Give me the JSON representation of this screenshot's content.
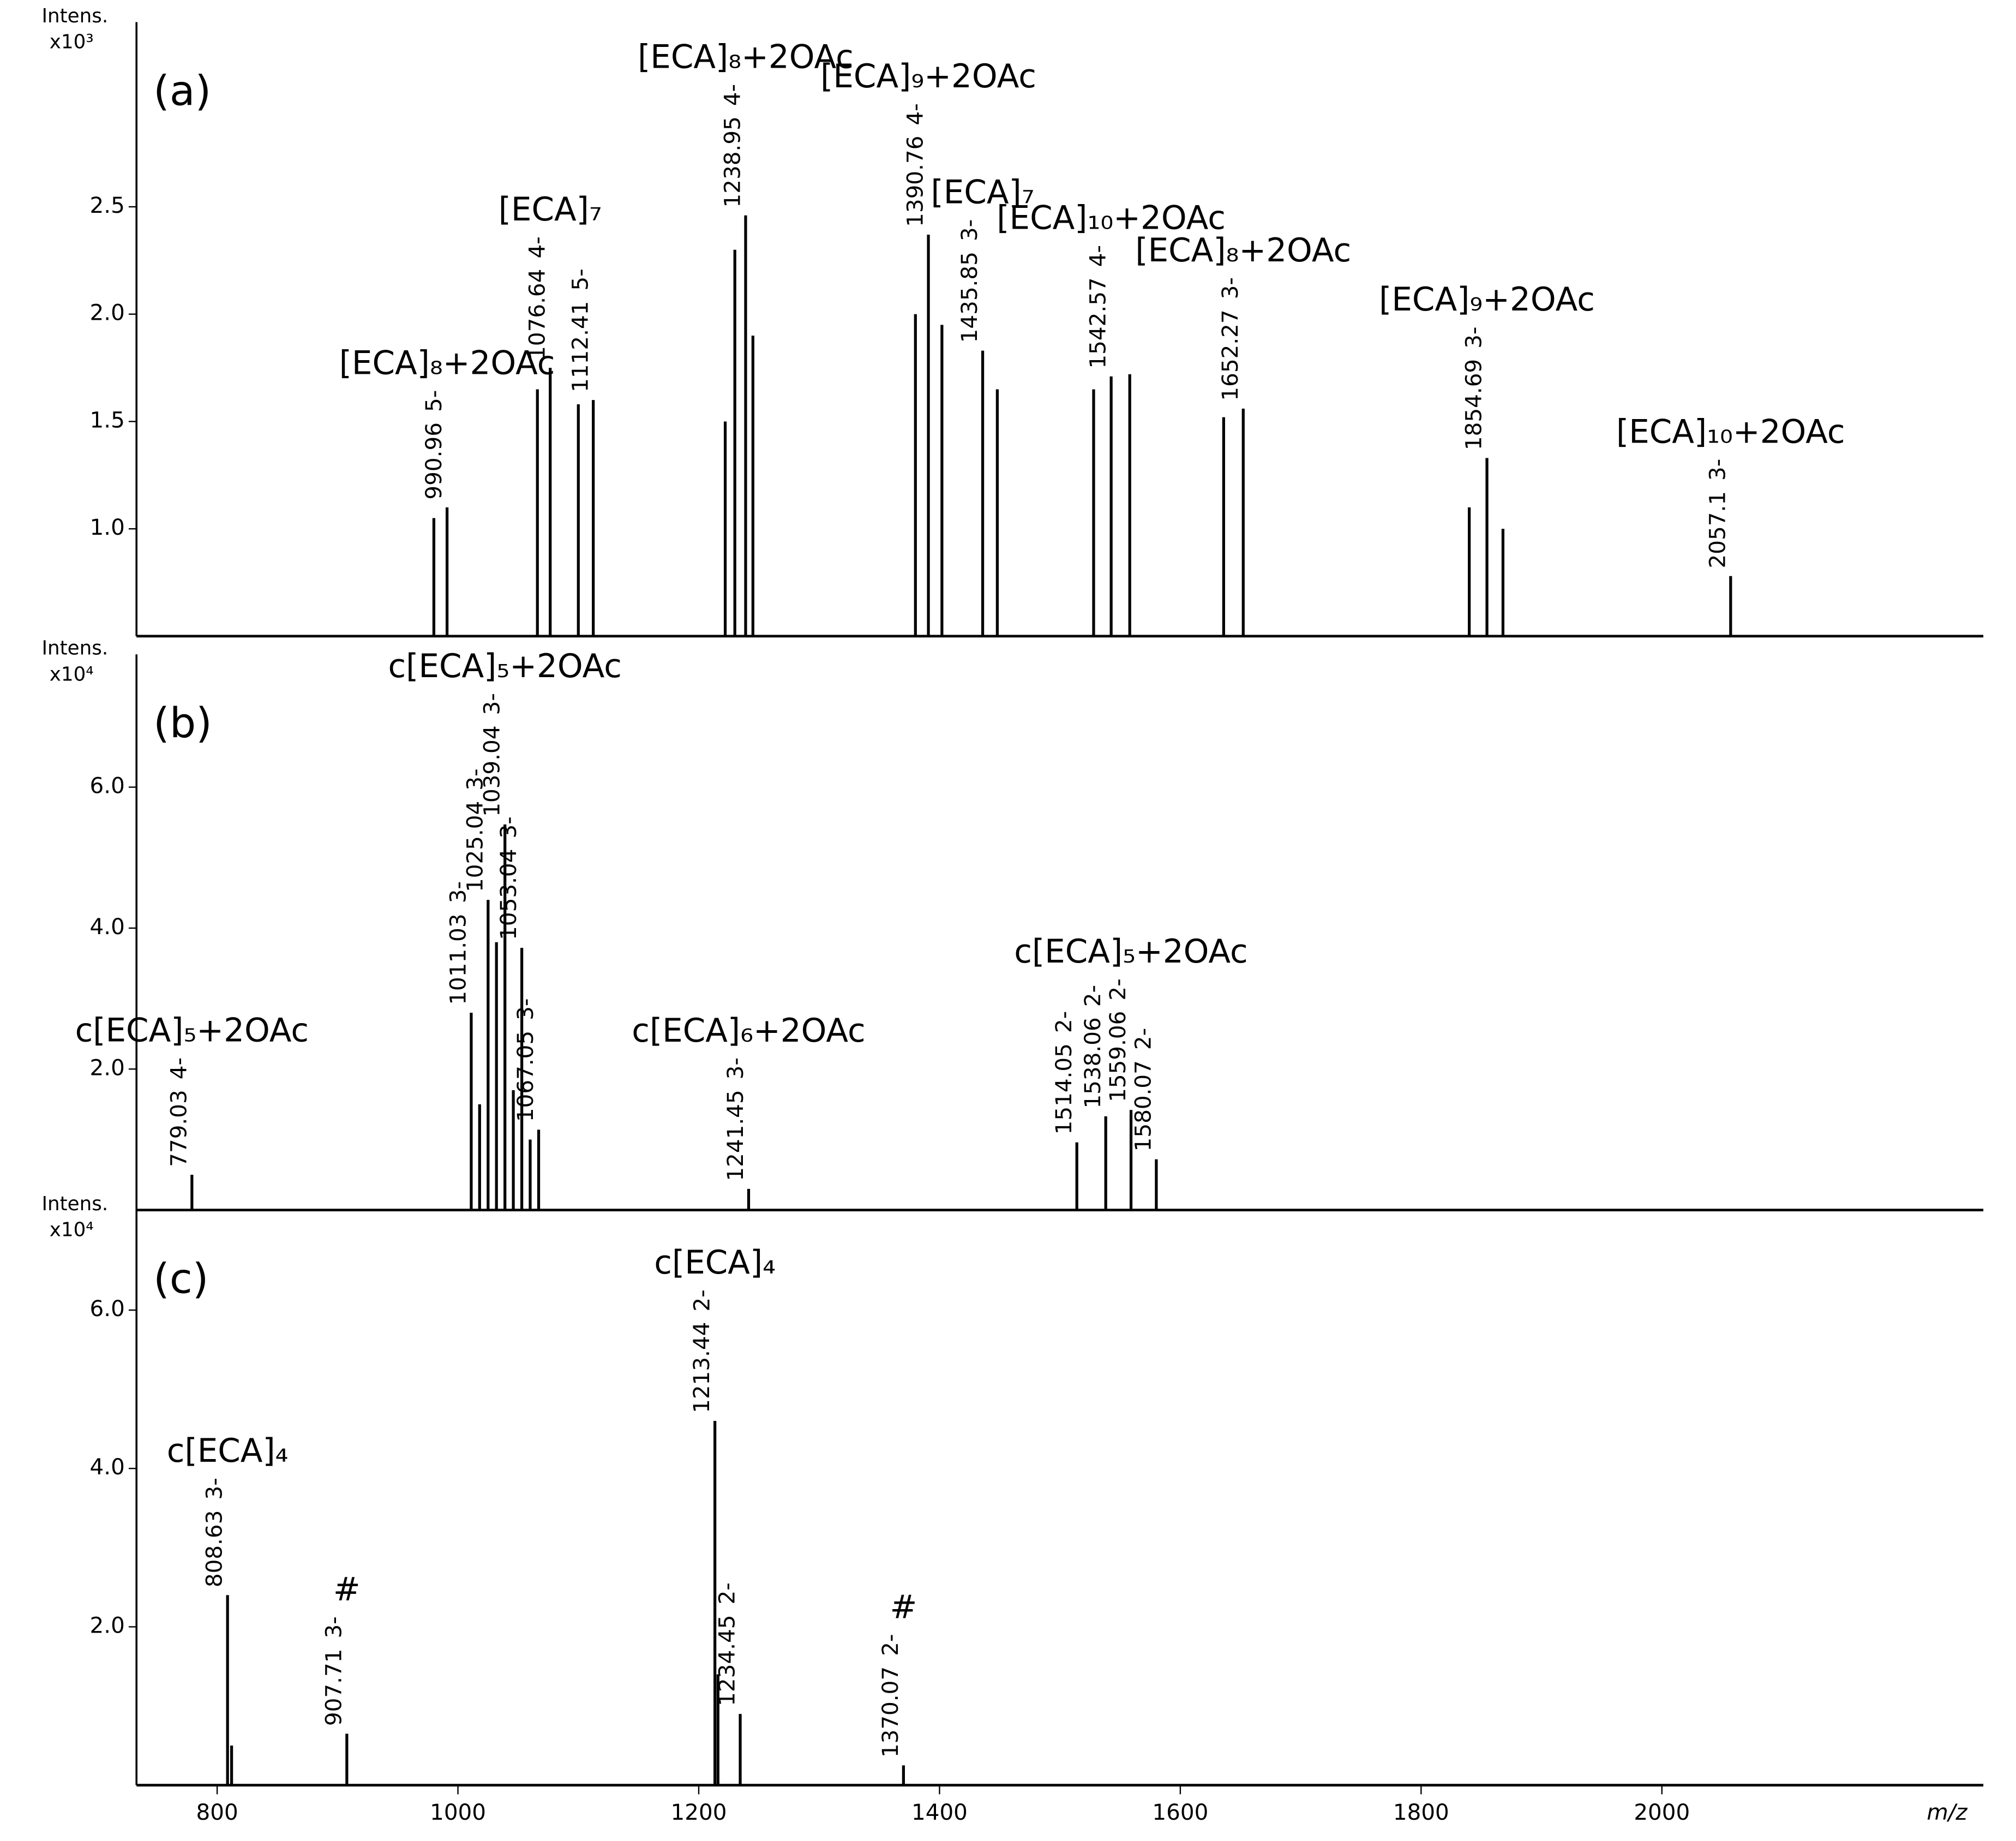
{
  "chart_data": [
    {
      "type": "stem",
      "panel_label": "(a)",
      "y_label": "Intens.",
      "y_multiplier": "x10³",
      "color": "#000000",
      "ylim": [
        0.5,
        3.3
      ],
      "yticks": [
        {
          "value": 1.0,
          "label": "1.0"
        },
        {
          "value": 1.5,
          "label": "1.5"
        },
        {
          "value": 2.0,
          "label": "2.0"
        },
        {
          "value": 2.5,
          "label": "2.5"
        }
      ],
      "x": [
        980,
        990.96,
        1066,
        1076.64,
        1100,
        1112.41,
        1222,
        1230,
        1238.95,
        1245,
        1380,
        1390.76,
        1402,
        1435.85,
        1448,
        1528,
        1542.57,
        1558,
        1636,
        1652.27,
        1840,
        1854.69,
        1868,
        2057.1
      ],
      "values": [
        1.05,
        1.1,
        1.65,
        1.75,
        1.58,
        1.6,
        1.5,
        2.3,
        2.46,
        1.9,
        2.0,
        2.37,
        1.95,
        1.83,
        1.65,
        1.65,
        1.71,
        1.72,
        1.52,
        1.56,
        1.1,
        1.33,
        1.0,
        0.78
      ],
      "charges": [
        null,
        "5-",
        null,
        "4-",
        null,
        "5-",
        null,
        null,
        "4-",
        null,
        null,
        "4-",
        null,
        "3-",
        null,
        null,
        "4-",
        null,
        null,
        "3-",
        null,
        "3-",
        null,
        "3-"
      ],
      "species": [
        null,
        "[ECA]₈+2OAc",
        null,
        "[ECA]₇",
        null,
        null,
        null,
        null,
        "[ECA]₈+2OAc",
        null,
        null,
        "[ECA]₉+2OAc",
        null,
        "[ECA]₇",
        null,
        null,
        "[ECA]₁₀+2OAc",
        null,
        null,
        "[ECA]₈+2OAc",
        null,
        "[ECA]₉+2OAc",
        null,
        "[ECA]₁₀+2OAc"
      ]
    },
    {
      "type": "stem",
      "panel_label": "(b)",
      "y_label": "Intens.",
      "y_multiplier": "x10⁴",
      "color": "#000000",
      "ylim": [
        0,
        7.7
      ],
      "yticks": [
        {
          "value": 2.0,
          "label": "2.0"
        },
        {
          "value": 4.0,
          "label": "4.0"
        },
        {
          "value": 6.0,
          "label": "6.0"
        }
      ],
      "x": [
        779.03,
        1011.03,
        1018,
        1025.04,
        1032,
        1039.04,
        1046,
        1053.04,
        1060,
        1067.05,
        1241.45,
        1514.05,
        1538.06,
        1559.06,
        1580.07
      ],
      "values": [
        0.5,
        2.8,
        1.5,
        4.4,
        3.8,
        5.47,
        1.7,
        3.72,
        1.0,
        1.14,
        0.3,
        0.96,
        1.33,
        1.42,
        0.72
      ],
      "charges": [
        "4-",
        "3-",
        null,
        "3-",
        null,
        "3-",
        null,
        "3-",
        null,
        "3-",
        "3-",
        "2-",
        "2-",
        "2-",
        "2-"
      ],
      "species": [
        "c[ECA]₅+2OAc",
        null,
        null,
        null,
        null,
        "c[ECA]₅+2OAc",
        null,
        null,
        null,
        null,
        "c[ECA]₆+2OAc",
        null,
        null,
        "c[ECA]₅+2OAc",
        null
      ]
    },
    {
      "type": "stem",
      "panel_label": "(c)",
      "y_label": "Intens.",
      "y_multiplier": "x10⁴",
      "color": "#000000",
      "ylim": [
        0,
        7.1
      ],
      "yticks": [
        {
          "value": 2.0,
          "label": "2.0"
        },
        {
          "value": 4.0,
          "label": "4.0"
        },
        {
          "value": 6.0,
          "label": "6.0"
        }
      ],
      "x": [
        808.63,
        812,
        907.71,
        1213.44,
        1216,
        1234.45,
        1370.07
      ],
      "values": [
        2.4,
        0.5,
        0.65,
        4.6,
        1.4,
        0.9,
        0.25
      ],
      "charges": [
        "3-",
        null,
        "3-",
        "2-",
        null,
        "2-",
        "2-"
      ],
      "species": [
        "c[ECA]₄",
        null,
        "#",
        "c[ECA]₄",
        null,
        null,
        "#"
      ],
      "x_label": "m/z",
      "xlim": [
        733,
        2267
      ],
      "xticks": [
        800,
        1000,
        1200,
        1400,
        1600,
        1800,
        2000
      ]
    }
  ]
}
